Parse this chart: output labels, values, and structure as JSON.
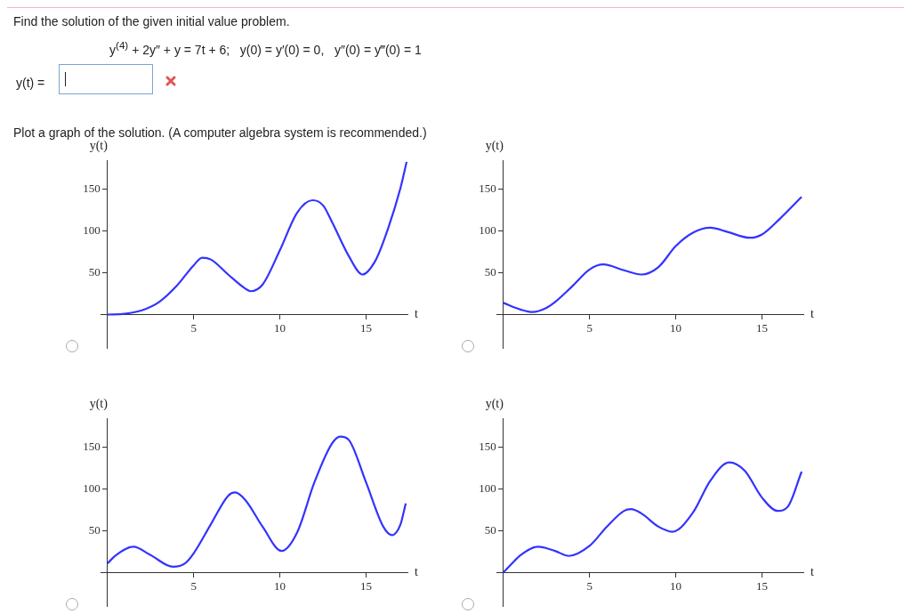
{
  "chart_data": [
    {
      "type": "line",
      "xlabel": "t",
      "ylabel": "y(t)",
      "color": "#3333ff",
      "grid": false,
      "xlim": [
        -0.4,
        17.4
      ],
      "ylim": [
        -40,
        185
      ],
      "xticks": [
        5,
        10,
        15
      ],
      "yticks": [
        50,
        100,
        150
      ],
      "annotations": [
        "Find the solution of the given initial value problem.",
        "y$^{(4)}$ + 2y″ + y = 7t + 6;   y(0) = y′(0) = 0,   y″(0) = y‴(0) = 1",
        "y(t) =",
        "Plot a graph of the solution. (A computer algebra system is recommended.)"
      ],
      "x": [
        0,
        1,
        2,
        3,
        4,
        5,
        5.5,
        6,
        7,
        8,
        8.3,
        9,
        10,
        11,
        11.9,
        12.5,
        13,
        14,
        14.8,
        15.5,
        16,
        17,
        17.35
      ],
      "values": [
        0,
        1,
        5,
        15,
        34,
        59,
        68,
        66,
        48,
        31,
        28,
        36,
        77,
        122,
        137,
        131,
        112,
        70,
        48,
        63,
        87,
        152,
        183
      ]
    },
    {
      "type": "line",
      "xlabel": "t",
      "ylabel": "y(t)",
      "color": "#3333ff",
      "grid": false,
      "xlim": [
        -0.4,
        17.4
      ],
      "ylim": [
        -40,
        185
      ],
      "xticks": [
        5,
        10,
        15
      ],
      "yticks": [
        50,
        100,
        150
      ],
      "x": [
        0,
        1,
        1.7,
        2.5,
        3,
        4,
        5,
        5.8,
        7,
        8,
        9,
        10,
        11,
        12,
        13,
        14.3,
        15,
        16,
        17.3
      ],
      "values": [
        14,
        6,
        3,
        8,
        15,
        34,
        54,
        60,
        53,
        48,
        57,
        82,
        98,
        104,
        99,
        92,
        96,
        114,
        141
      ]
    },
    {
      "type": "line",
      "xlabel": "t",
      "ylabel": "y(t)",
      "color": "#3333ff",
      "grid": false,
      "xlim": [
        -0.4,
        17.4
      ],
      "ylim": [
        -40,
        185
      ],
      "xticks": [
        5,
        10,
        15
      ],
      "yticks": [
        50,
        100,
        150
      ],
      "x": [
        0,
        0.5,
        1.5,
        2.5,
        3.8,
        4.5,
        5,
        6,
        7,
        7.4,
        8,
        9,
        10.1,
        11,
        12,
        13,
        13.5,
        14,
        15,
        16,
        16.5,
        17,
        17.3
      ],
      "values": [
        11,
        21,
        31,
        21,
        7,
        11,
        23,
        58,
        92,
        96,
        87,
        55,
        26,
        48,
        108,
        154,
        163,
        159,
        108,
        55,
        45,
        58,
        83
      ]
    },
    {
      "type": "line",
      "xlabel": "t",
      "ylabel": "y(t)",
      "color": "#3333ff",
      "grid": false,
      "xlim": [
        -0.4,
        17.4
      ],
      "ylim": [
        -40,
        185
      ],
      "xticks": [
        5,
        10,
        15
      ],
      "yticks": [
        50,
        100,
        150
      ],
      "x": [
        0,
        0.5,
        1,
        2,
        3,
        3.8,
        5,
        6,
        7,
        7.4,
        8,
        9,
        9.8,
        11,
        12,
        13.1,
        14,
        15,
        15.9,
        16.5,
        17.3
      ],
      "values": [
        0,
        11,
        21,
        31,
        26,
        20,
        32,
        55,
        74,
        76,
        71,
        55,
        49,
        72,
        110,
        132,
        122,
        90,
        74,
        79,
        121
      ]
    }
  ]
}
